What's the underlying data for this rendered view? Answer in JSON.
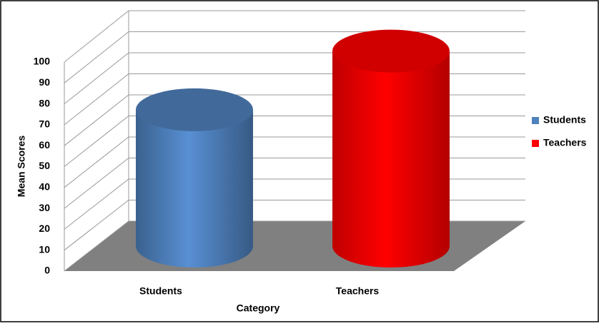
{
  "chart_data": {
    "type": "bar3d",
    "categories": [
      "Students",
      "Teachers"
    ],
    "series": [
      {
        "name": "Students",
        "color": "#4f81bd",
        "values": [
          65,
          null
        ]
      },
      {
        "name": "Teachers",
        "color": "#ff0000",
        "values": [
          null,
          93
        ]
      }
    ],
    "ylim": [
      0,
      100
    ],
    "yticks": [
      0,
      10,
      20,
      30,
      40,
      50,
      60,
      70,
      80,
      90,
      100
    ],
    "xlabel": "Category",
    "ylabel": "Mean Scores",
    "grid": true,
    "legend": "right"
  }
}
